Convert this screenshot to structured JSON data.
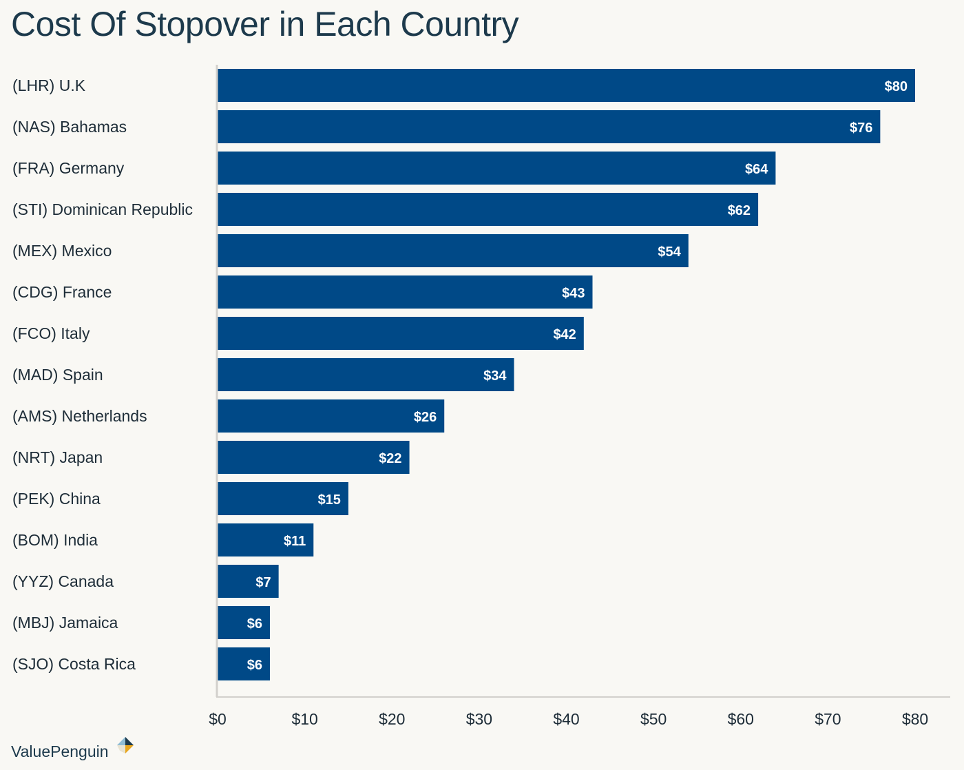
{
  "chart_data": {
    "type": "bar",
    "orientation": "horizontal",
    "title": "Cost Of Stopover in Each Country",
    "categories": [
      "(LHR) U.K",
      "(NAS) Bahamas",
      "(FRA) Germany",
      "(STI) Dominican Republic",
      "(MEX) Mexico",
      "(CDG) France",
      "(FCO) Italy",
      "(MAD) Spain",
      "(AMS) Netherlands",
      "(NRT) Japan",
      "(PEK) China",
      "(BOM) India",
      "(YYZ) Canada",
      "(MBJ) Jamaica",
      "(SJO) Costa Rica"
    ],
    "values": [
      80,
      76,
      64,
      62,
      54,
      43,
      42,
      34,
      26,
      22,
      15,
      11,
      7,
      6,
      6
    ],
    "value_labels": [
      "$80",
      "$76",
      "$64",
      "$62",
      "$54",
      "$43",
      "$42",
      "$34",
      "$26",
      "$22",
      "$15",
      "$11",
      "$7",
      "$6",
      "$6"
    ],
    "xlim": [
      0,
      80
    ],
    "x_ticks": [
      0,
      10,
      20,
      30,
      40,
      50,
      60,
      70,
      80
    ],
    "x_tick_labels": [
      "$0",
      "$10",
      "$20",
      "$30",
      "$40",
      "$50",
      "$60",
      "$70",
      "$80"
    ],
    "xlabel": "",
    "ylabel": "",
    "grid": false,
    "bar_color": "#004987",
    "axis_color": "#d2d0cc"
  },
  "branding": {
    "name": "ValuePenguin",
    "text_color": "#1d3a4c",
    "icon_colors": [
      "#1d3a4c",
      "#e8a61e",
      "#8fbcd4",
      "#e8e3d2"
    ]
  }
}
